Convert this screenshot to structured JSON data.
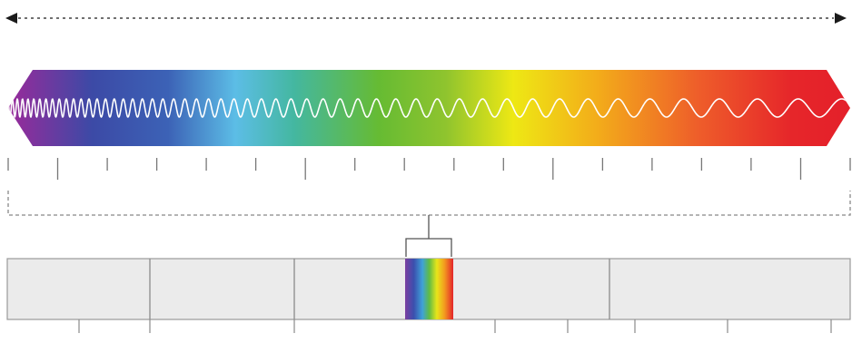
{
  "range_arrow": {
    "style": "dashed",
    "ends": "both",
    "color": "#1a1a1a"
  },
  "spectrum_band": {
    "shape": "hexagonal-arrow",
    "gradient_stops": [
      {
        "offset": 0.0,
        "color": "#9a2a9a"
      },
      {
        "offset": 0.1,
        "color": "#3c4aa6"
      },
      {
        "offset": 0.19,
        "color": "#3c62b6"
      },
      {
        "offset": 0.27,
        "color": "#5cbde6"
      },
      {
        "offset": 0.34,
        "color": "#44b7a0"
      },
      {
        "offset": 0.44,
        "color": "#66bb33"
      },
      {
        "offset": 0.52,
        "color": "#8fc42e"
      },
      {
        "offset": 0.6,
        "color": "#eee814"
      },
      {
        "offset": 0.7,
        "color": "#f3ac1a"
      },
      {
        "offset": 0.82,
        "color": "#ee5d2a"
      },
      {
        "offset": 0.93,
        "color": "#e6262a"
      },
      {
        "offset": 1.0,
        "color": "#e4202a"
      }
    ],
    "wave": {
      "color": "#ffffff",
      "frequency": "decreasing-left-to-right"
    }
  },
  "scale": {
    "major_every": 5,
    "tick_count": 18
  },
  "bracket": {
    "style": "dashed",
    "color": "#888888"
  },
  "bottom_bar": {
    "fill": "#ebebeb",
    "border": "#9a9a9a",
    "visible_band": {
      "gradient_stops": [
        {
          "offset": 0.0,
          "color": "#7b3fa0"
        },
        {
          "offset": 0.18,
          "color": "#3b4fae"
        },
        {
          "offset": 0.36,
          "color": "#3fa2d8"
        },
        {
          "offset": 0.5,
          "color": "#5fbb45"
        },
        {
          "offset": 0.66,
          "color": "#e8e51a"
        },
        {
          "offset": 0.82,
          "color": "#f39a1f"
        },
        {
          "offset": 1.0,
          "color": "#e3242b"
        }
      ]
    }
  }
}
